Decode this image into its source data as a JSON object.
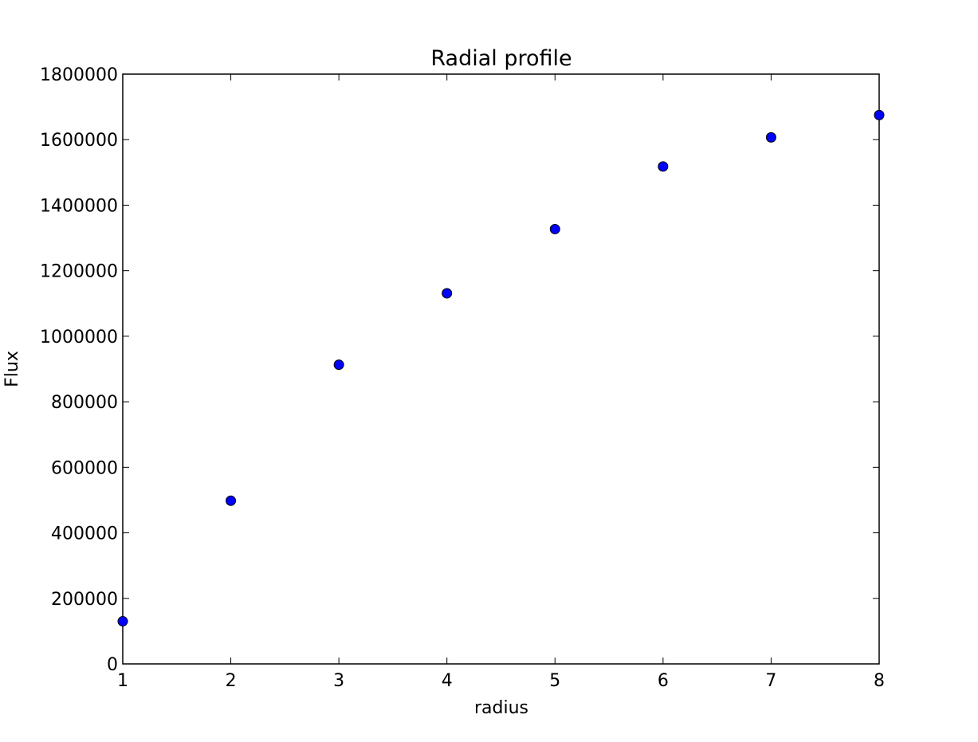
{
  "chart_data": {
    "type": "scatter",
    "title": "Radial profile",
    "xlabel": "radius",
    "ylabel": "Flux",
    "xlim": [
      1,
      8
    ],
    "ylim": [
      0,
      1800000
    ],
    "xticks": [
      "1",
      "2",
      "3",
      "4",
      "5",
      "6",
      "7",
      "8"
    ],
    "yticks": [
      "0",
      "200000",
      "400000",
      "600000",
      "800000",
      "1000000",
      "1200000",
      "1400000",
      "1600000",
      "1800000"
    ],
    "grid": false,
    "legend": "none",
    "marker_color": "#0000ff",
    "marker_edge": "#000000",
    "series": [
      {
        "x": [
          1,
          2,
          3,
          4,
          5,
          6,
          7,
          8
        ],
        "y": [
          130000,
          498000,
          913000,
          1131000,
          1327000,
          1518000,
          1607000,
          1675000
        ]
      }
    ]
  }
}
